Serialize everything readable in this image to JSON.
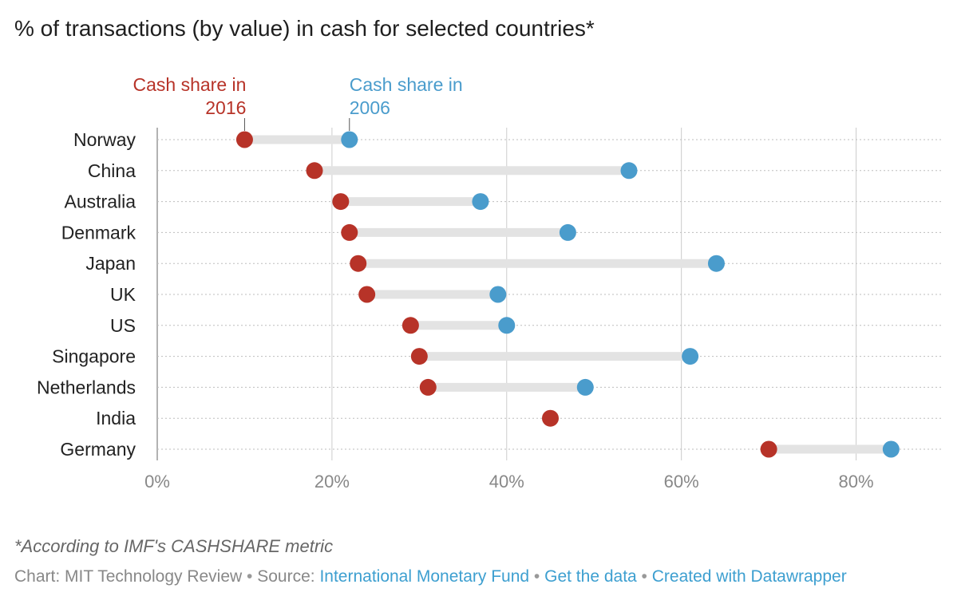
{
  "title": "% of transactions (by value) in cash for selected countries*",
  "note": "*According to IMF's CASHSHARE metric",
  "footer": {
    "chart_label": "Chart: MIT Technology Review",
    "separator": " • ",
    "source_label": "Source: ",
    "source_link": "International Monetary Fund",
    "data_link": "Get the data",
    "created_link": "Created with Datawrapper"
  },
  "colors": {
    "2016": "#b73328",
    "2006": "#4a9ccc",
    "range_bar": "#e3e3e3",
    "grid": "#cccccc",
    "row_line": "#bdbdbd",
    "tick_label": "#888888",
    "category_label": "#222222"
  },
  "chart_data": {
    "type": "dot-range",
    "title": "% of transactions (by value) in cash for selected countries*",
    "xlim": [
      0,
      90
    ],
    "x_ticks": [
      0,
      20,
      40,
      60,
      80
    ],
    "x_tick_labels": [
      "0%",
      "20%",
      "40%",
      "60%",
      "80%"
    ],
    "grid": "vertical",
    "categories": [
      "Norway",
      "China",
      "Australia",
      "Denmark",
      "Japan",
      "UK",
      "US",
      "Singapore",
      "Netherlands",
      "India",
      "Germany"
    ],
    "series": [
      {
        "name": "Cash share in 2016",
        "color": "#b73328",
        "values": [
          10,
          18,
          21,
          22,
          23,
          24,
          29,
          30,
          31,
          45,
          70
        ]
      },
      {
        "name": "Cash share in 2006",
        "color": "#4a9ccc",
        "values": [
          22,
          54,
          37,
          47,
          64,
          39,
          40,
          61,
          49,
          null,
          84
        ]
      }
    ],
    "series_label_lines": [
      [
        "Cash share in",
        "2016"
      ],
      [
        "Cash share in",
        "2006"
      ]
    ]
  }
}
